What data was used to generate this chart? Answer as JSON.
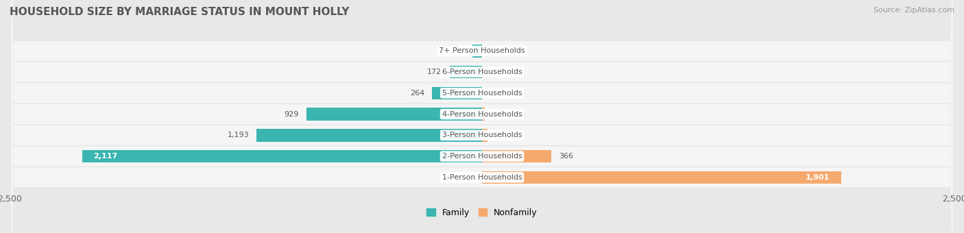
{
  "title": "HOUSEHOLD SIZE BY MARRIAGE STATUS IN MOUNT HOLLY",
  "source": "Source: ZipAtlas.com",
  "categories": [
    "7+ Person Households",
    "6-Person Households",
    "5-Person Households",
    "4-Person Households",
    "3-Person Households",
    "2-Person Households",
    "1-Person Households"
  ],
  "family_values": [
    51,
    172,
    264,
    929,
    1193,
    2117,
    0
  ],
  "nonfamily_values": [
    0,
    0,
    0,
    15,
    29,
    366,
    1901
  ],
  "family_color": "#3ab5b0",
  "nonfamily_color": "#f5a96e",
  "axis_limit": 2500,
  "legend_family": "Family",
  "legend_nonfamily": "Nonfamily",
  "bar_height": 0.6,
  "background_color": "#e8e8e8",
  "row_bg_color": "#f5f5f5",
  "title_fontsize": 11,
  "source_fontsize": 8,
  "label_fontsize": 8,
  "value_fontsize": 8,
  "tick_fontsize": 9
}
